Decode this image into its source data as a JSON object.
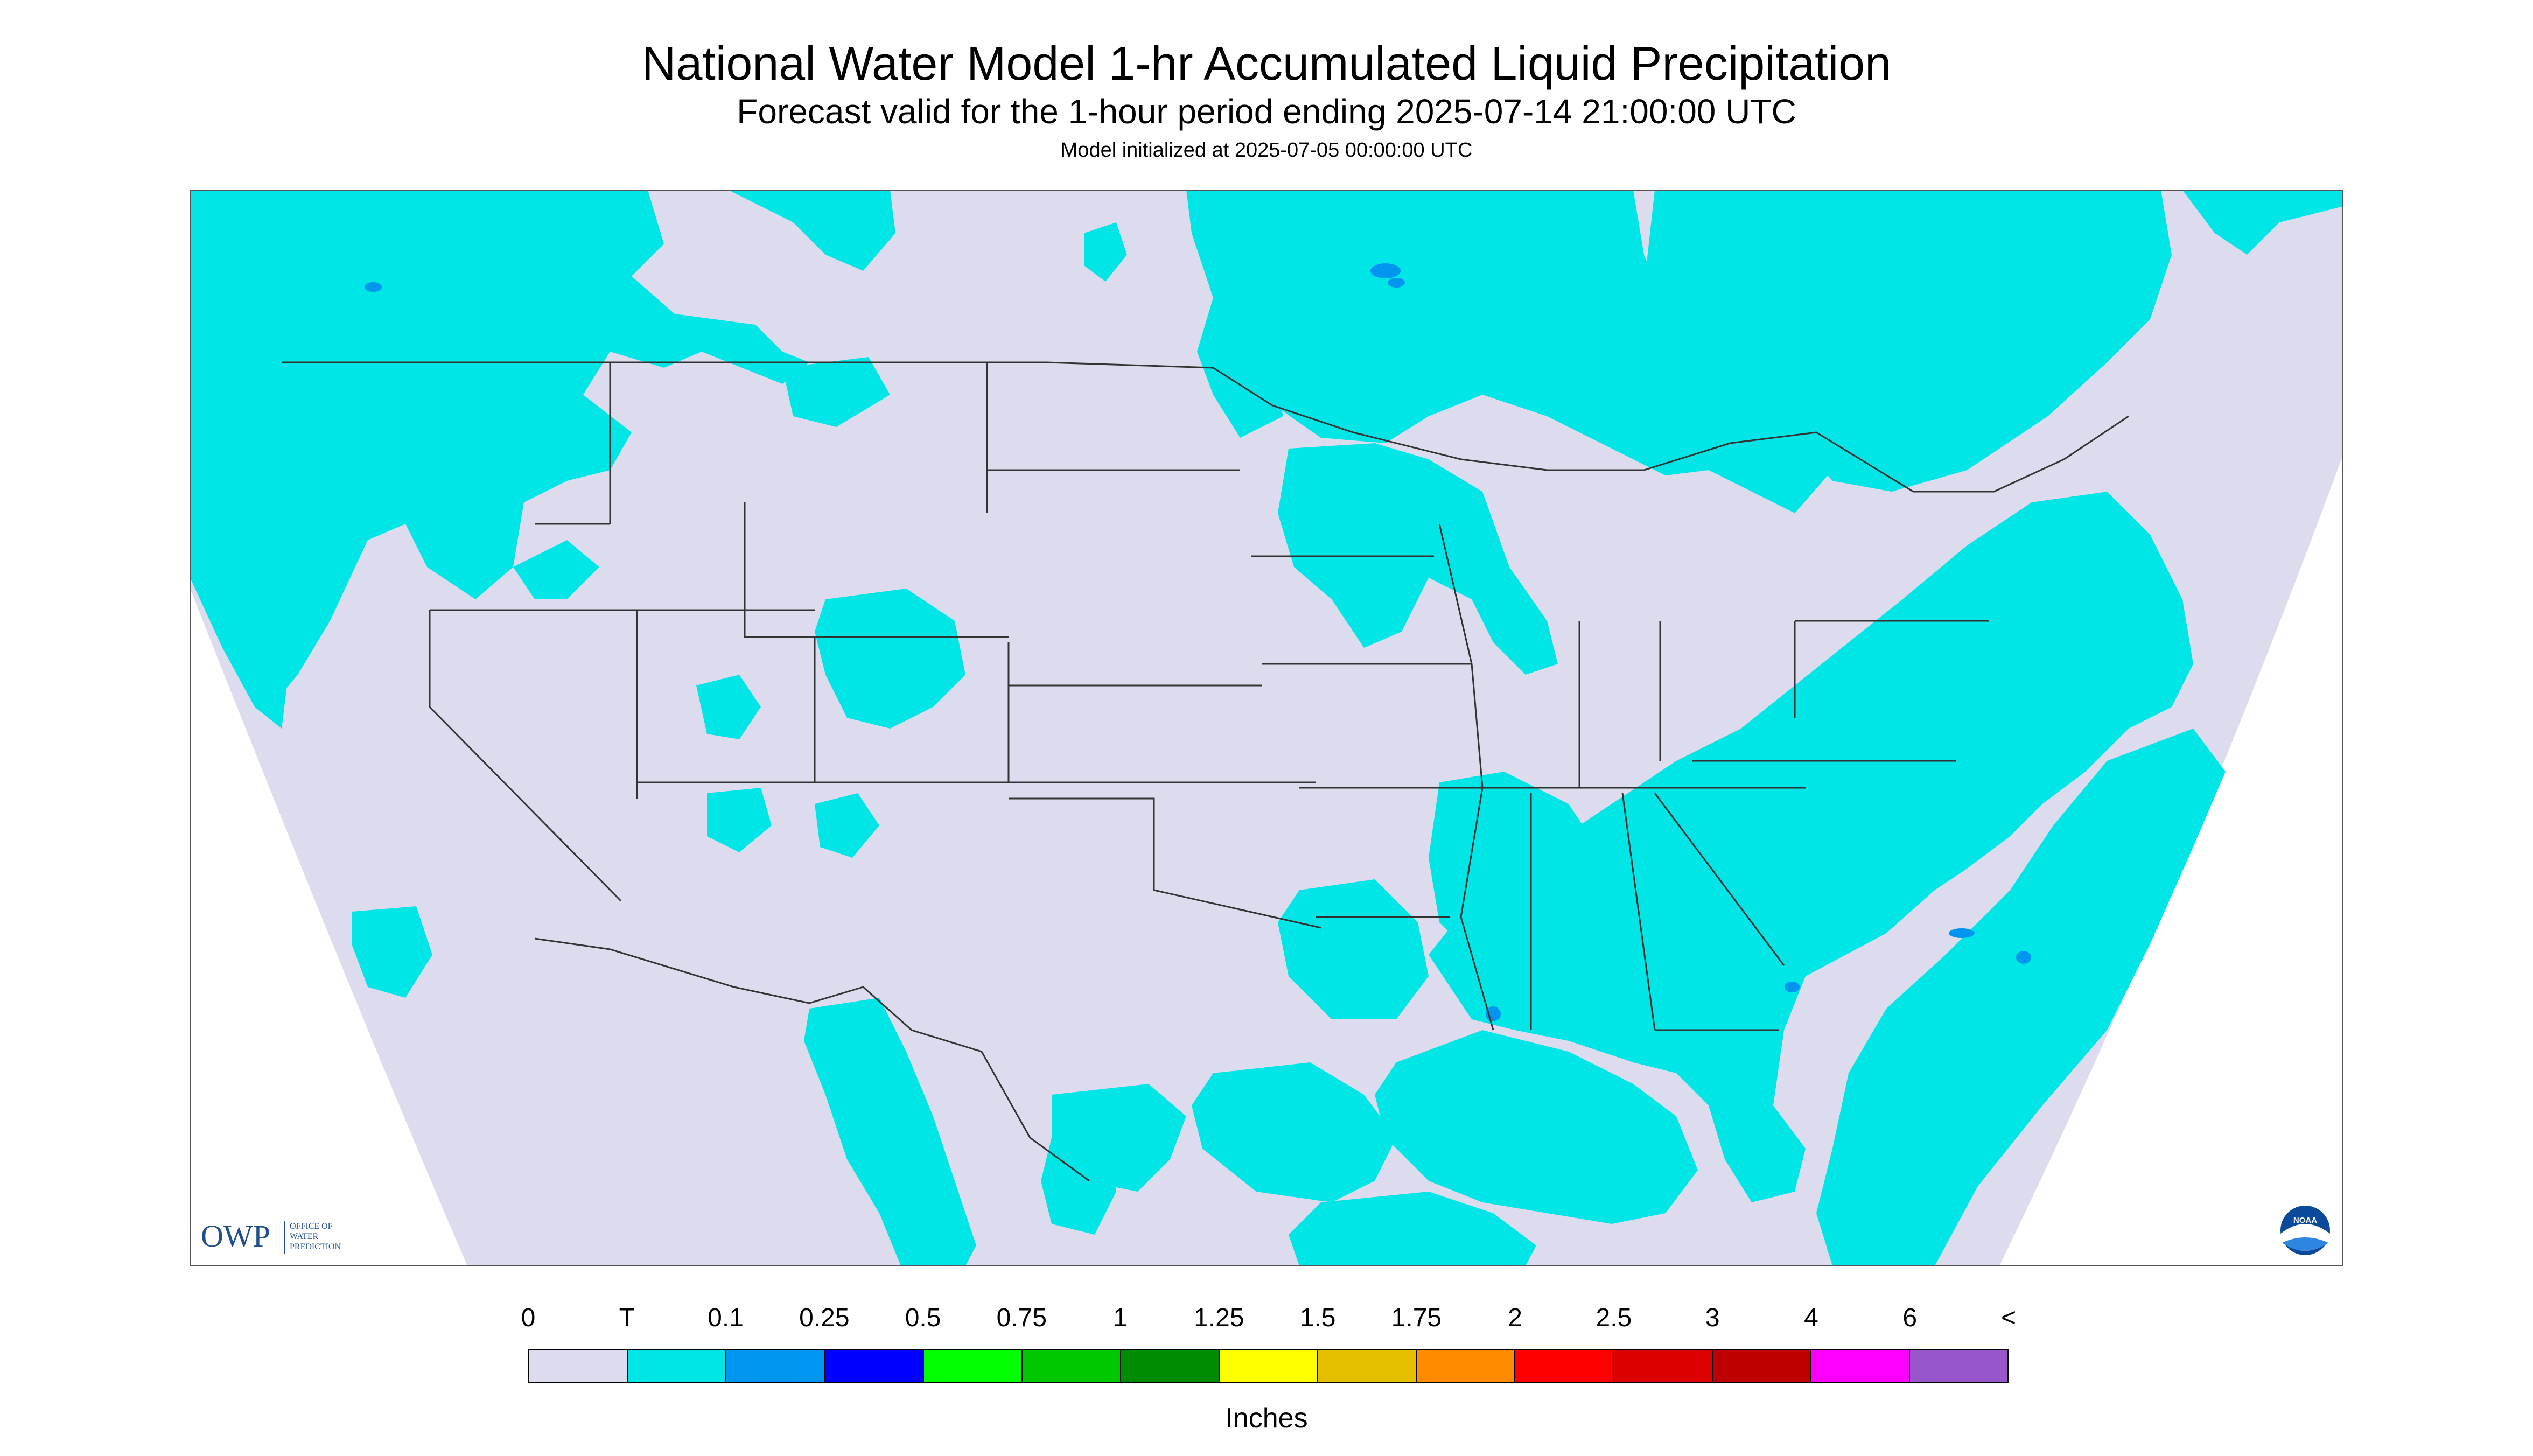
{
  "header": {
    "title": "National Water Model 1-hr Accumulated Liquid Precipitation",
    "subtitle": "Forecast valid for the 1-hour period ending 2025-07-14 21:00:00 UTC",
    "init": "Model initialized at 2025-07-05 00:00:00 UTC"
  },
  "map": {
    "background_color": "#ffffff",
    "domain_color": "#dcdcee",
    "precip_color": "#00e6e6",
    "heavier_precip_color": "#0096f0",
    "border_color": "#333333",
    "owp_logo": {
      "name": "owp-logo",
      "text": "OWP",
      "subtext_lines": [
        "OFFICE OF",
        "WATER",
        "PREDICTION"
      ],
      "color": "#1f4f8f"
    },
    "noaa_logo": {
      "name": "noaa-logo",
      "text": "NOAA"
    }
  },
  "legend": {
    "labels": [
      "0",
      "T",
      "0.1",
      "0.25",
      "0.5",
      "0.75",
      "1",
      "1.25",
      "1.5",
      "1.75",
      "2",
      "2.5",
      "3",
      "4",
      "6",
      "<"
    ],
    "colors": [
      "#dcdcee",
      "#00e6e6",
      "#0096f0",
      "#0000ff",
      "#00ff00",
      "#00c800",
      "#008c00",
      "#ffff00",
      "#e6be00",
      "#ff8c00",
      "#ff0000",
      "#dc0000",
      "#be0000",
      "#ff00ff",
      "#9955cc"
    ],
    "units": "Inches"
  }
}
